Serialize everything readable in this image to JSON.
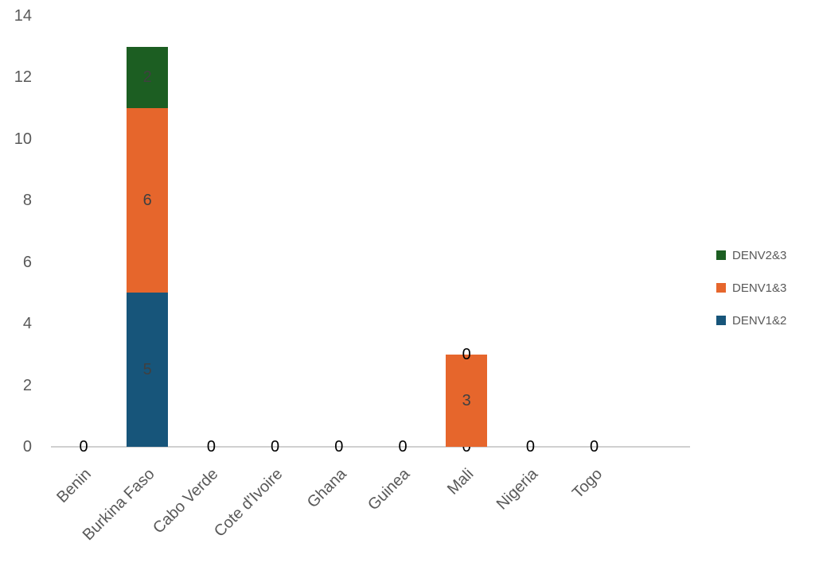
{
  "chart_data": {
    "type": "bar",
    "stacked": true,
    "title": "",
    "xlabel": "",
    "ylabel": "",
    "ylim": [
      0,
      14
    ],
    "yticks": [
      0,
      2,
      4,
      6,
      8,
      10,
      12,
      14
    ],
    "grid": false,
    "legend_position": "right",
    "categories": [
      "Benin",
      "Burkina Faso",
      "Cabo Verde",
      "Cote d'Ivoire",
      "Ghana",
      "Guinea",
      "Mali",
      "Nigeria",
      "Togo"
    ],
    "series": [
      {
        "name": "DENV1&2",
        "color": "#17557a",
        "values": [
          0,
          5,
          0,
          0,
          0,
          0,
          0,
          0,
          0
        ]
      },
      {
        "name": "DENV1&3",
        "color": "#e6662c",
        "values": [
          0,
          6,
          0,
          0,
          0,
          0,
          3,
          0,
          0
        ]
      },
      {
        "name": "DENV2&3",
        "color": "#1c5e22",
        "values": [
          0,
          2,
          0,
          0,
          0,
          0,
          0,
          0,
          0
        ]
      }
    ],
    "data_labels": {
      "Benin": [
        "0"
      ],
      "Burkina Faso": [
        "5",
        "6",
        "2"
      ],
      "Cabo Verde": [
        "0"
      ],
      "Cote d'Ivoire": [
        "0"
      ],
      "Ghana": [
        "0"
      ],
      "Guinea": [
        "0"
      ],
      "Mali": [
        "0",
        "3",
        "0"
      ],
      "Nigeria": [
        "0"
      ],
      "Togo": [
        "0"
      ]
    },
    "legend": [
      "DENV2&3",
      "DENV1&3",
      "DENV1&2"
    ]
  }
}
